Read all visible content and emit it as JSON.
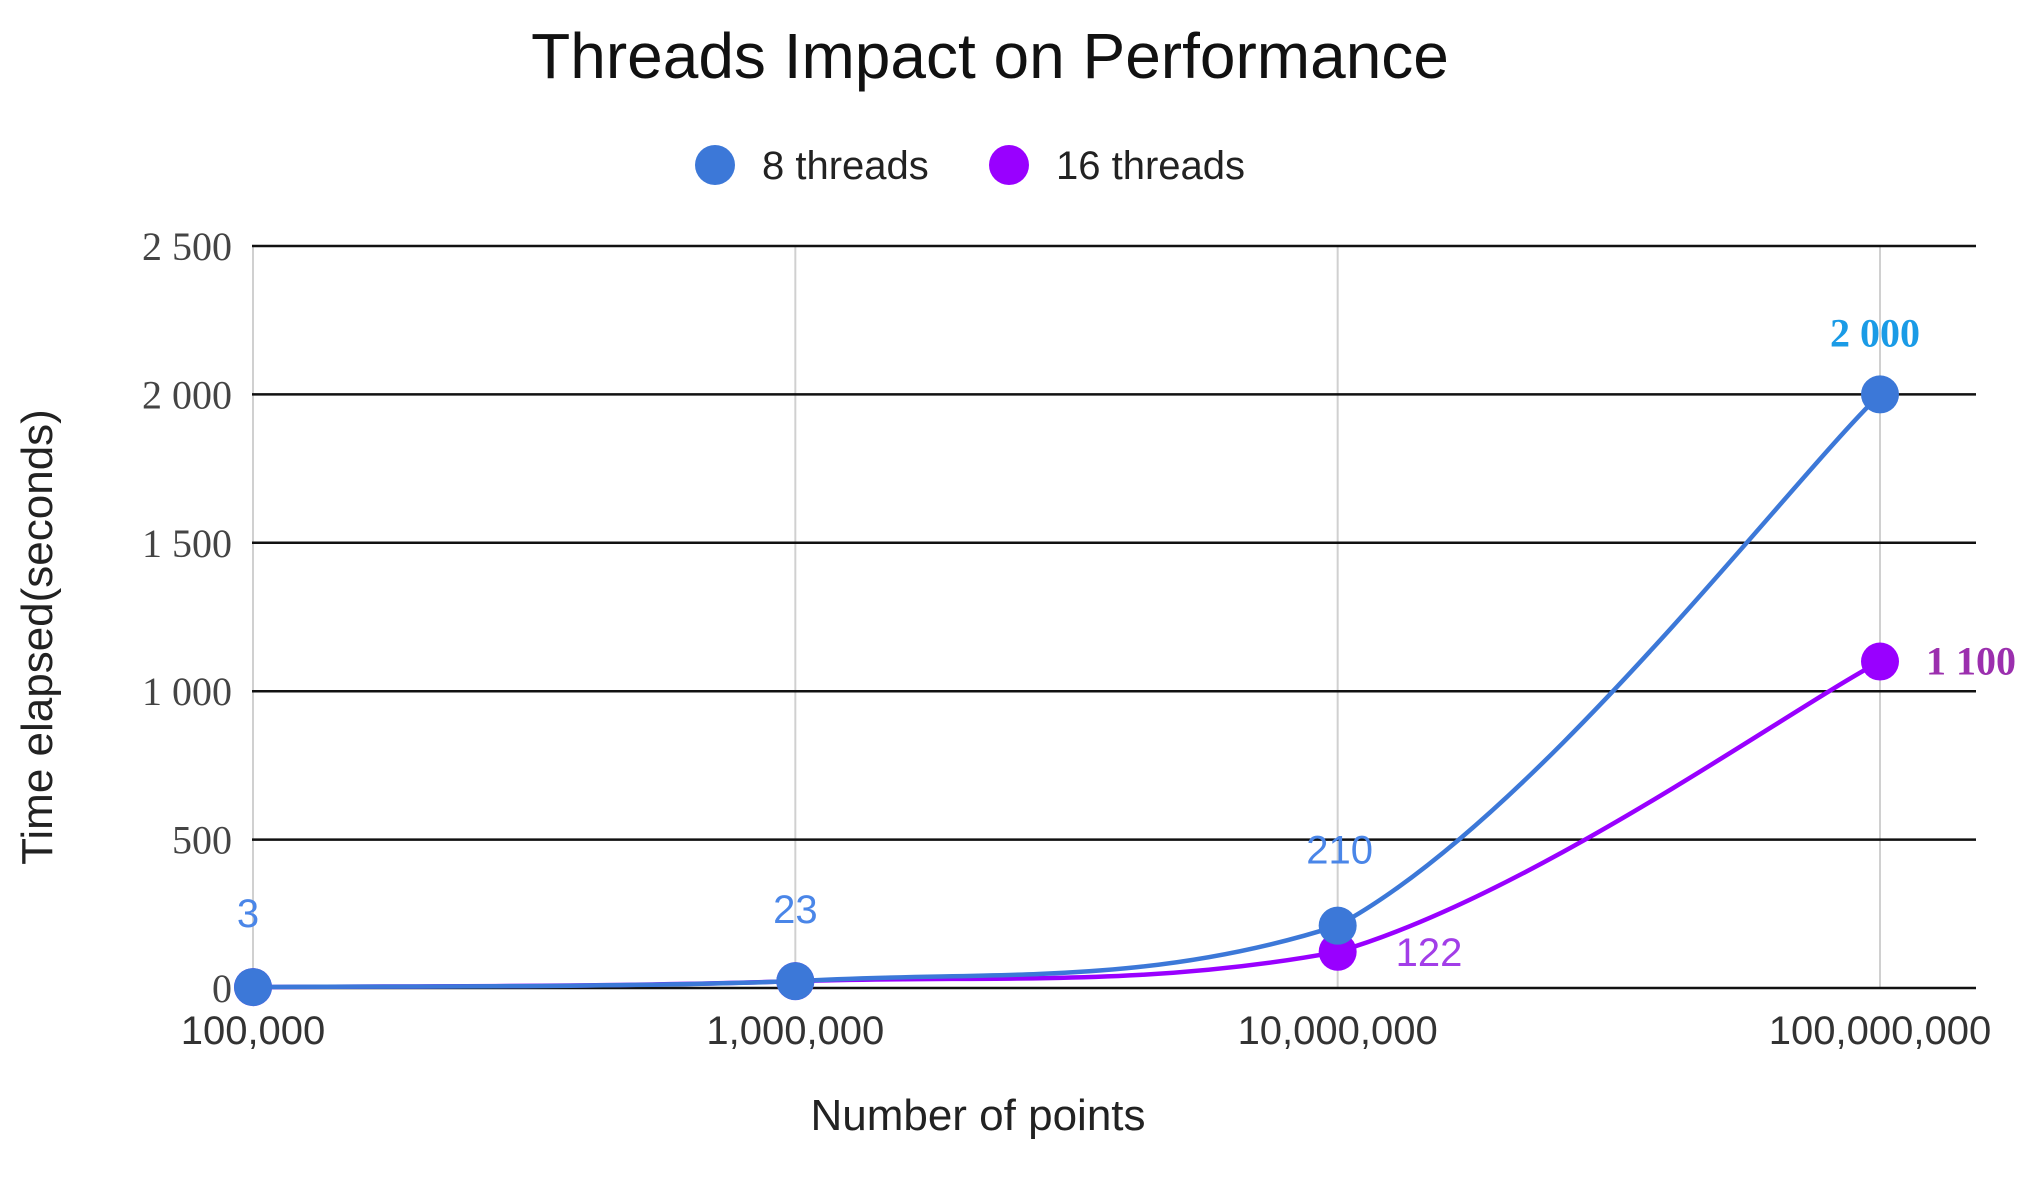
{
  "chart_data": {
    "type": "line",
    "title": "Threads Impact on Performance",
    "xlabel": "Number of points",
    "ylabel": "Time elapsed(seconds)",
    "x_scale": "log",
    "x": [
      100000,
      1000000,
      10000000,
      100000000
    ],
    "x_tick_labels": [
      "100,000",
      "1,000,000",
      "10,000,000",
      "100,000,000"
    ],
    "ylim": [
      0,
      2500
    ],
    "y_ticks": [
      0,
      500,
      1000,
      1500,
      2000,
      2500
    ],
    "y_tick_labels": [
      "0",
      "500",
      "1 000",
      "1 500",
      "2 000",
      "2 500"
    ],
    "grid": true,
    "legend_position": "top-center",
    "series": [
      {
        "name": "8 threads",
        "color": "#3c78d8",
        "values": [
          3,
          23,
          210,
          2000
        ],
        "data_labels": [
          "3",
          "23",
          "210",
          "2 000"
        ],
        "label_colors": [
          "#4a86e8",
          "#4a86e8",
          "#4a86e8",
          "#1a9be6"
        ]
      },
      {
        "name": "16 threads",
        "color": "#9900ff",
        "values": [
          3,
          23,
          122,
          1100
        ],
        "data_labels": [
          "",
          "",
          "122",
          "1 100"
        ],
        "label_colors": [
          "#9900ff",
          "#9900ff",
          "#a23ee8",
          "#9b2fae"
        ]
      }
    ]
  }
}
